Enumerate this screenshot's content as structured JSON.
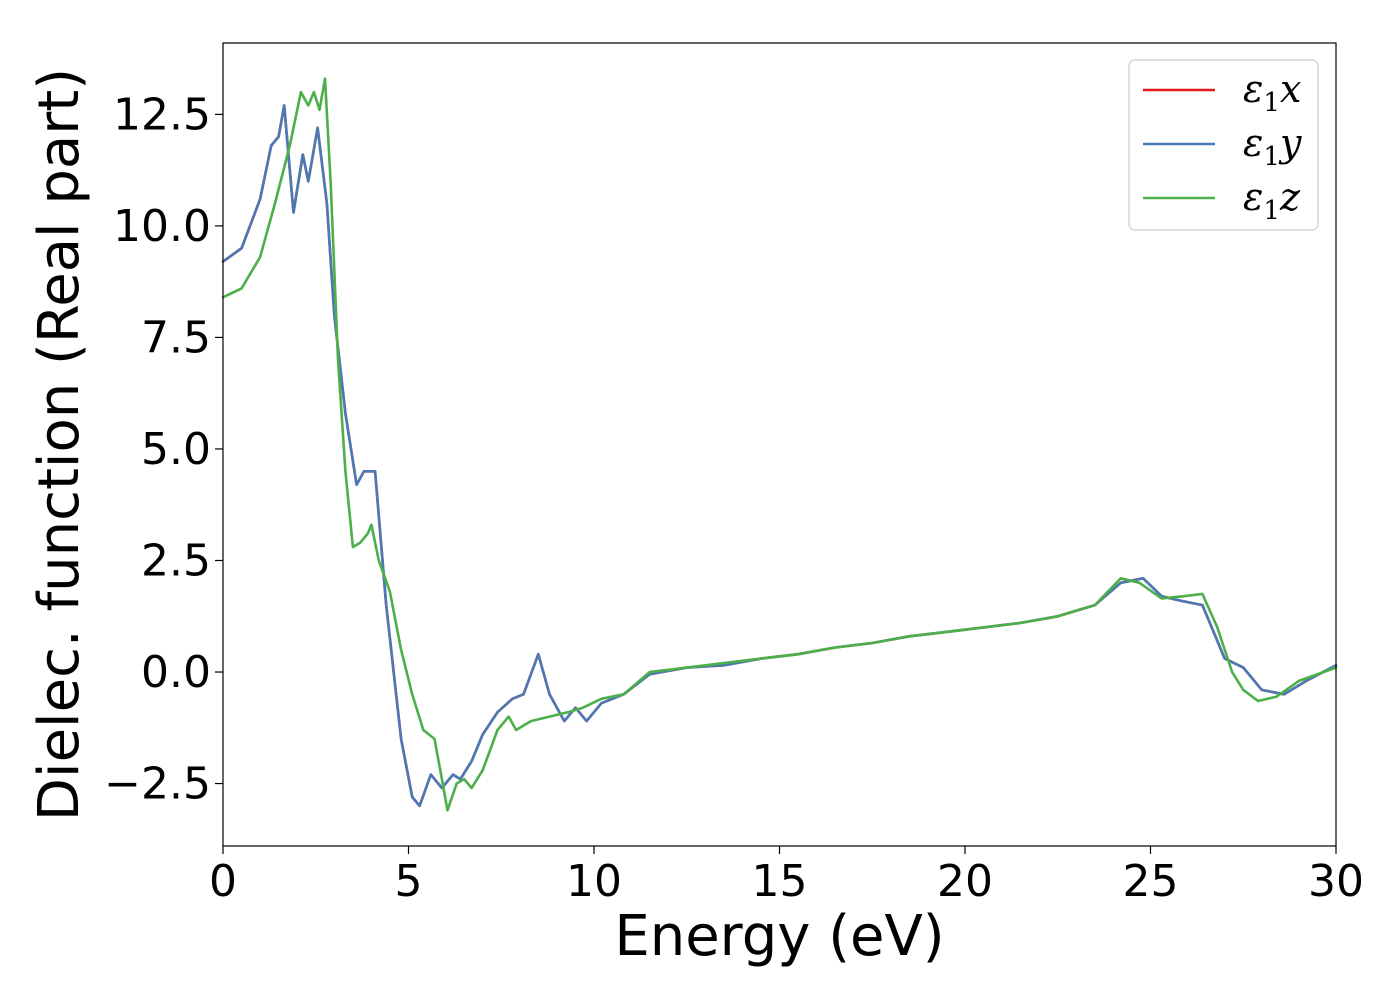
{
  "chart_data": {
    "type": "line",
    "xlabel": "Energy (eV)",
    "ylabel": "Dielec. function (Real part)",
    "xlim": [
      0,
      30
    ],
    "ylim": [
      -3.9,
      14.1
    ],
    "xticks": [
      0,
      5,
      10,
      15,
      20,
      25,
      30
    ],
    "xtick_labels": [
      "0",
      "5",
      "10",
      "15",
      "20",
      "25",
      "30"
    ],
    "yticks": [
      -2.5,
      0,
      2.5,
      5,
      7.5,
      10,
      12.5
    ],
    "ytick_labels": [
      "−2.5",
      "0.0",
      "2.5",
      "5.0",
      "7.5",
      "10.0",
      "12.5"
    ],
    "grid": false,
    "legend_position": "top-right",
    "series": [
      {
        "name": "ε₁x",
        "legend_base": "ε",
        "legend_sub": "1",
        "legend_var": "x",
        "color": "#e41a1c",
        "x": [
          0,
          0.5,
          1.0,
          1.3,
          1.5,
          1.65,
          1.9,
          2.15,
          2.3,
          2.55,
          2.8,
          3.0,
          3.3,
          3.6,
          3.8,
          4.1,
          4.4,
          4.8,
          5.1,
          5.3,
          5.6,
          5.9,
          6.2,
          6.4,
          6.7,
          7.0,
          7.4,
          7.8,
          8.1,
          8.5,
          8.8,
          9.2,
          9.5,
          9.8,
          10.2,
          10.8,
          11.5,
          12.5,
          13.5,
          14.5,
          15.5,
          16.5,
          17.5,
          18.5,
          19.5,
          20.5,
          21.5,
          22.5,
          23.5,
          24.2,
          24.8,
          25.3,
          25.8,
          26.4,
          27.0,
          27.5,
          28.0,
          28.6,
          29.2,
          30.0
        ],
        "values": [
          9.2,
          9.5,
          10.6,
          11.8,
          12.0,
          12.7,
          10.3,
          11.6,
          11.0,
          12.2,
          10.5,
          8.0,
          5.8,
          4.2,
          4.5,
          4.5,
          1.5,
          -1.5,
          -2.8,
          -3.0,
          -2.3,
          -2.6,
          -2.3,
          -2.4,
          -2.0,
          -1.4,
          -0.9,
          -0.6,
          -0.5,
          0.4,
          -0.5,
          -1.1,
          -0.8,
          -1.1,
          -0.7,
          -0.5,
          -0.05,
          0.1,
          0.15,
          0.3,
          0.4,
          0.55,
          0.65,
          0.8,
          0.9,
          1.0,
          1.1,
          1.25,
          1.5,
          2.0,
          2.1,
          1.7,
          1.6,
          1.5,
          0.3,
          0.1,
          -0.4,
          -0.5,
          -0.2,
          0.15
        ]
      },
      {
        "name": "ε₁y",
        "legend_base": "ε",
        "legend_sub": "1",
        "legend_var": "y",
        "color": "#4a7ab5",
        "x": [
          0,
          0.5,
          1.0,
          1.3,
          1.5,
          1.65,
          1.9,
          2.15,
          2.3,
          2.55,
          2.8,
          3.0,
          3.3,
          3.6,
          3.8,
          4.1,
          4.4,
          4.8,
          5.1,
          5.3,
          5.6,
          5.9,
          6.2,
          6.4,
          6.7,
          7.0,
          7.4,
          7.8,
          8.1,
          8.5,
          8.8,
          9.2,
          9.5,
          9.8,
          10.2,
          10.8,
          11.5,
          12.5,
          13.5,
          14.5,
          15.5,
          16.5,
          17.5,
          18.5,
          19.5,
          20.5,
          21.5,
          22.5,
          23.5,
          24.2,
          24.8,
          25.3,
          25.8,
          26.4,
          27.0,
          27.5,
          28.0,
          28.6,
          29.2,
          30.0
        ],
        "values": [
          9.2,
          9.5,
          10.6,
          11.8,
          12.0,
          12.7,
          10.3,
          11.6,
          11.0,
          12.2,
          10.5,
          8.0,
          5.8,
          4.2,
          4.5,
          4.5,
          1.5,
          -1.5,
          -2.8,
          -3.0,
          -2.3,
          -2.6,
          -2.3,
          -2.4,
          -2.0,
          -1.4,
          -0.9,
          -0.6,
          -0.5,
          0.4,
          -0.5,
          -1.1,
          -0.8,
          -1.1,
          -0.7,
          -0.5,
          -0.05,
          0.1,
          0.15,
          0.3,
          0.4,
          0.55,
          0.65,
          0.8,
          0.9,
          1.0,
          1.1,
          1.25,
          1.5,
          2.0,
          2.1,
          1.7,
          1.6,
          1.5,
          0.3,
          0.1,
          -0.4,
          -0.5,
          -0.2,
          0.15
        ]
      },
      {
        "name": "ε₁z",
        "legend_base": "ε",
        "legend_sub": "1",
        "legend_var": "z",
        "color": "#4daf4a",
        "x": [
          0,
          0.5,
          1.0,
          1.4,
          1.8,
          2.1,
          2.3,
          2.45,
          2.6,
          2.75,
          2.9,
          3.1,
          3.3,
          3.5,
          3.7,
          3.9,
          4.0,
          4.2,
          4.5,
          4.8,
          5.1,
          5.4,
          5.7,
          5.9,
          6.05,
          6.3,
          6.5,
          6.7,
          7.0,
          7.4,
          7.7,
          7.9,
          8.3,
          8.8,
          9.3,
          9.7,
          10.2,
          10.8,
          11.5,
          12.5,
          13.5,
          14.5,
          15.5,
          16.5,
          17.5,
          18.5,
          19.5,
          20.5,
          21.5,
          22.5,
          23.5,
          24.2,
          24.7,
          25.3,
          25.9,
          26.4,
          26.8,
          27.2,
          27.5,
          27.9,
          28.4,
          29.0,
          30.0
        ],
        "values": [
          8.4,
          8.6,
          9.3,
          10.5,
          11.8,
          13.0,
          12.7,
          13.0,
          12.6,
          13.3,
          11.0,
          7.0,
          4.5,
          2.8,
          2.9,
          3.1,
          3.3,
          2.5,
          1.8,
          0.5,
          -0.5,
          -1.3,
          -1.5,
          -2.4,
          -3.1,
          -2.5,
          -2.4,
          -2.6,
          -2.2,
          -1.3,
          -1.0,
          -1.3,
          -1.1,
          -1.0,
          -0.9,
          -0.8,
          -0.6,
          -0.5,
          0.0,
          0.1,
          0.2,
          0.3,
          0.4,
          0.55,
          0.65,
          0.8,
          0.9,
          1.0,
          1.1,
          1.25,
          1.5,
          2.1,
          2.0,
          1.65,
          1.7,
          1.75,
          1.0,
          0.0,
          -0.4,
          -0.65,
          -0.55,
          -0.2,
          0.1
        ]
      }
    ]
  }
}
